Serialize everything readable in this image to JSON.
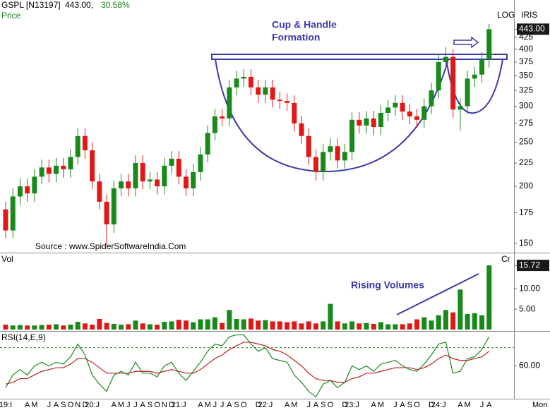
{
  "header": {
    "symbol": "GSPL [N13197]",
    "last": "443.00,",
    "change": "30.58%"
  },
  "chart_data": [
    {
      "type": "candlestick",
      "label": "Price",
      "scale_label": "LOG",
      "vendor_label": "IRIS",
      "log_scale": true,
      "up_color": "#18891a",
      "down_color": "#e01818",
      "annotation": [
        "Cup & Handle",
        "Formation"
      ],
      "source": "Source : www.SpiderSoftwareIndia.Com",
      "categories": [
        "19:I",
        null,
        null,
        "A",
        "M",
        null,
        "J",
        "A",
        "S",
        "O",
        "N",
        "D",
        "20:J",
        null,
        null,
        "A",
        "M",
        "J",
        "J",
        "A",
        "S",
        "O",
        "N",
        "D",
        "21:J",
        null,
        null,
        "A",
        "M",
        "J",
        "J",
        "A",
        "S",
        "O",
        null,
        "D",
        "22:J",
        null,
        null,
        "A",
        "M",
        null,
        "J",
        "A",
        "S",
        "O",
        null,
        "D",
        "23:J",
        null,
        null,
        "A",
        "M",
        null,
        "J",
        "A",
        "S",
        "O",
        null,
        "D",
        "24:J",
        null,
        null,
        "A",
        "M",
        null,
        "J",
        "A"
      ],
      "open": [
        178,
        160,
        190,
        200,
        193,
        210,
        220,
        213,
        222,
        218,
        232,
        258,
        240,
        205,
        185,
        165,
        198,
        205,
        198,
        225,
        205,
        207,
        200,
        222,
        230,
        210,
        198,
        215,
        235,
        262,
        285,
        282,
        330,
        345,
        348,
        330,
        318,
        330,
        310,
        308,
        305,
        275,
        258,
        232,
        215,
        238,
        245,
        228,
        238,
        280,
        272,
        282,
        270,
        290,
        298,
        305,
        292,
        285,
        280,
        300,
        325,
        375,
        385,
        295,
        300,
        345,
        352,
        380
      ],
      "high": [
        185,
        198,
        208,
        208,
        218,
        229,
        229,
        231,
        231,
        241,
        268,
        268,
        250,
        213,
        192,
        206,
        213,
        213,
        234,
        234,
        215,
        215,
        231,
        239,
        239,
        218,
        224,
        244,
        272,
        296,
        296,
        343,
        359,
        362,
        362,
        343,
        343,
        343,
        322,
        320,
        317,
        286,
        268,
        241,
        248,
        255,
        255,
        248,
        291,
        291,
        293,
        293,
        302,
        310,
        317,
        317,
        304,
        296,
        312,
        338,
        390,
        405,
        400,
        312,
        359,
        366,
        395,
        455
      ],
      "low": [
        154,
        154,
        182,
        185,
        185,
        202,
        204,
        204,
        209,
        209,
        223,
        230,
        197,
        178,
        148,
        158,
        190,
        190,
        190,
        197,
        197,
        192,
        192,
        213,
        202,
        190,
        190,
        206,
        226,
        252,
        271,
        271,
        317,
        331,
        317,
        305,
        305,
        298,
        296,
        293,
        264,
        248,
        223,
        206,
        206,
        228,
        219,
        219,
        228,
        261,
        261,
        259,
        259,
        278,
        286,
        280,
        274,
        269,
        269,
        288,
        312,
        360,
        283,
        265,
        288,
        331,
        338,
        365
      ],
      "close": [
        160,
        190,
        200,
        193,
        210,
        220,
        213,
        222,
        218,
        232,
        258,
        240,
        205,
        185,
        165,
        198,
        205,
        198,
        225,
        205,
        207,
        200,
        222,
        230,
        210,
        198,
        215,
        235,
        262,
        285,
        282,
        330,
        345,
        348,
        330,
        318,
        330,
        310,
        308,
        305,
        275,
        258,
        232,
        215,
        238,
        245,
        228,
        238,
        280,
        272,
        282,
        270,
        290,
        298,
        305,
        292,
        285,
        280,
        300,
        325,
        375,
        385,
        295,
        300,
        345,
        352,
        380,
        443
      ],
      "ylim": [
        143,
        499
      ],
      "yticks": [
        {
          "value": 443,
          "label": "443.00"
        },
        425,
        400,
        375,
        350,
        325,
        300,
        275,
        250,
        225,
        200,
        175,
        150
      ]
    },
    {
      "type": "bar",
      "label": "Vol",
      "unit_label": "Cr",
      "annotation": "Rising Volumes",
      "values": [
        1.2,
        1.0,
        1.1,
        1.0,
        1.0,
        1.1,
        1.2,
        1.3,
        1.0,
        1.2,
        1.9,
        1.5,
        1.2,
        2.6,
        1.6,
        1.4,
        1.2,
        1.3,
        2.2,
        1.5,
        1.3,
        1.2,
        1.9,
        2.0,
        2.4,
        2.2,
        1.8,
        2.5,
        2.5,
        3.0,
        1.6,
        4.8,
        2.6,
        2.5,
        2.7,
        2.2,
        2.3,
        2.0,
        2.0,
        1.8,
        2.0,
        1.5,
        2.0,
        1.5,
        2.0,
        6.3,
        2.0,
        1.5,
        2.0,
        1.5,
        1.6,
        1.4,
        1.8,
        1.3,
        1.3,
        1.3,
        1.5,
        2.5,
        3.0,
        2.2,
        3.5,
        4.8,
        4.2,
        9.8,
        3.8,
        4.0,
        3.5,
        15.72
      ],
      "ylim": [
        0,
        18.5
      ],
      "yticks": [
        {
          "value": 15.72,
          "label": "15.72"
        },
        {
          "value": 10,
          "label": "10.00"
        },
        {
          "value": 5,
          "label": "5.00"
        }
      ],
      "period": "Mon"
    },
    {
      "type": "line",
      "label": "RSI(14,E,9)",
      "reference_level": 70,
      "series": [
        {
          "color": "#1d8a1d",
          "values": [
            48,
            55,
            58,
            55,
            60,
            62,
            60,
            62,
            61,
            65,
            72,
            66,
            55,
            50,
            46,
            55,
            57,
            55,
            62,
            56,
            56,
            54,
            60,
            62,
            56,
            52,
            57,
            62,
            68,
            72,
            71,
            76,
            77,
            77,
            72,
            68,
            70,
            64,
            63,
            62,
            55,
            51,
            46,
            43,
            50,
            52,
            48,
            51,
            60,
            58,
            60,
            57,
            61,
            62,
            63,
            60,
            58,
            57,
            61,
            66,
            72,
            73,
            56,
            57,
            64,
            65,
            69,
            76
          ]
        },
        {
          "color": "#c02020",
          "values": [
            50,
            51,
            53,
            53,
            55,
            57,
            58,
            59,
            59,
            61,
            64,
            64,
            62,
            59,
            56,
            56,
            56,
            56,
            57,
            57,
            57,
            56,
            57,
            58,
            57,
            56,
            56,
            58,
            61,
            64,
            66,
            69,
            71,
            73,
            73,
            72,
            71,
            69,
            68,
            66,
            63,
            60,
            56,
            53,
            52,
            52,
            51,
            51,
            53,
            54,
            56,
            56,
            57,
            58,
            59,
            59,
            59,
            58,
            59,
            61,
            64,
            66,
            64,
            63,
            63,
            64,
            65,
            68
          ]
        }
      ],
      "ylim": [
        42,
        78
      ],
      "yticks": [
        {
          "value": 60,
          "label": "60.00"
        }
      ]
    }
  ]
}
